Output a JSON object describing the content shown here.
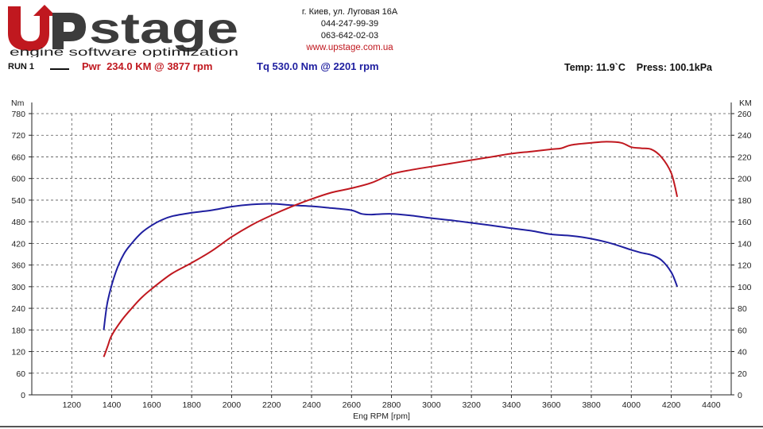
{
  "logo": {
    "brand": "Upstage",
    "tagline": "engine software optimization"
  },
  "contact": {
    "address": "г. Киев, ул. Луговая 16А",
    "phone1": "044-247-99-39",
    "phone2": "063-642-02-03",
    "website": "www.upstage.com.ua"
  },
  "run": {
    "label": "RUN 1",
    "pwr": "Pwr  234.0 KM @ 3877 rpm",
    "tq": "Tq 530.0 Nm @ 2201 rpm",
    "conditions": "Temp: 11.9`C    Press: 100.1kPa"
  },
  "colors": {
    "power": "#c0181f",
    "torque": "#1f1fa0",
    "brand_red": "#c0181f",
    "brand_dark": "#3c3c3c"
  },
  "chart_data": {
    "type": "line",
    "title": "",
    "xlabel": "Eng RPM [rpm]",
    "ylabel_left": "Nm",
    "ylabel_right": "KM",
    "xlim": [
      1000,
      4500
    ],
    "ylim_left": [
      0,
      780
    ],
    "ylim_right": [
      0,
      260
    ],
    "xticks": [
      1200,
      1400,
      1600,
      1800,
      2000,
      2200,
      2400,
      2600,
      2800,
      3000,
      3200,
      3400,
      3600,
      3800,
      4000,
      4200,
      4400
    ],
    "yticks_left": [
      0,
      60,
      120,
      180,
      240,
      300,
      360,
      420,
      480,
      540,
      600,
      660,
      720,
      780
    ],
    "yticks_right": [
      0,
      20,
      40,
      60,
      80,
      100,
      120,
      140,
      160,
      180,
      200,
      220,
      240,
      260
    ],
    "grid": true,
    "series": [
      {
        "name": "Tq",
        "axis": "left",
        "x": [
          1360,
          1380,
          1420,
          1460,
          1500,
          1550,
          1600,
          1650,
          1700,
          1800,
          1900,
          2000,
          2100,
          2200,
          2300,
          2400,
          2500,
          2600,
          2650,
          2700,
          2800,
          2900,
          3000,
          3100,
          3200,
          3300,
          3400,
          3500,
          3600,
          3700,
          3800,
          3900,
          4000,
          4050,
          4100,
          4150,
          4200,
          4230
        ],
        "y": [
          180,
          260,
          340,
          390,
          420,
          450,
          470,
          485,
          495,
          505,
          512,
          522,
          528,
          530,
          526,
          523,
          518,
          512,
          502,
          500,
          502,
          497,
          490,
          484,
          477,
          470,
          462,
          455,
          445,
          441,
          433,
          420,
          402,
          394,
          388,
          374,
          340,
          300
        ]
      },
      {
        "name": "Pwr",
        "axis": "right",
        "x": [
          1360,
          1380,
          1400,
          1450,
          1500,
          1550,
          1600,
          1700,
          1800,
          1900,
          2000,
          2100,
          2200,
          2300,
          2400,
          2500,
          2600,
          2700,
          2800,
          2900,
          3000,
          3100,
          3200,
          3300,
          3400,
          3500,
          3600,
          3650,
          3700,
          3800,
          3877,
          3950,
          4000,
          4050,
          4100,
          4150,
          4200,
          4230
        ],
        "y": [
          35,
          45,
          55,
          69,
          80,
          90,
          98,
          112,
          122,
          133,
          146,
          157,
          166,
          174,
          181,
          187,
          191,
          196,
          204,
          208,
          211,
          214,
          217,
          220,
          223,
          225,
          227,
          228,
          231,
          233,
          234,
          233,
          229,
          228,
          227,
          220,
          205,
          183
        ]
      }
    ]
  }
}
